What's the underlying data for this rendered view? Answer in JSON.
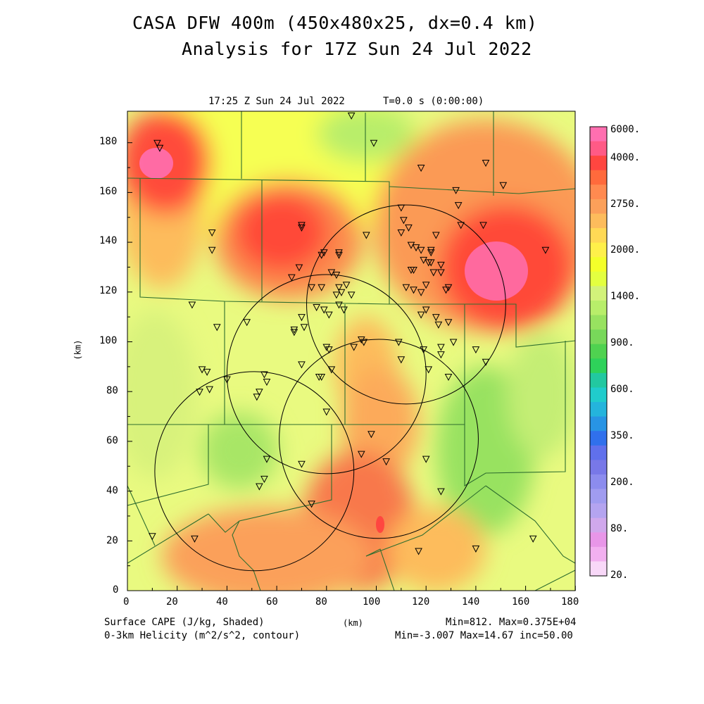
{
  "header": {
    "title_line1": "CASA DFW 400m (450x480x25, dx=0.4 km)",
    "title_line2": "Analysis for 17Z Sun 24 Jul 2022",
    "valid_time": "17:25 Z Sun 24 Jul 2022",
    "model_time": "T=0.0 s (0:00:00)"
  },
  "axes": {
    "x_label": "(km)",
    "y_label": "(km)",
    "x_ticks": [
      "0",
      "20",
      "40",
      "60",
      "80",
      "100",
      "120",
      "140",
      "160",
      "180"
    ],
    "y_ticks": [
      "0",
      "20",
      "40",
      "60",
      "80",
      "100",
      "120",
      "140",
      "160",
      "180"
    ]
  },
  "colorbar": {
    "labels": [
      "6000.",
      "4000.",
      "2750.",
      "2000.",
      "1400.",
      "900.",
      "600.",
      "350.",
      "200.",
      "80.",
      "20."
    ],
    "colors": [
      "#ff6fb0",
      "#ff5a86",
      "#ff4640",
      "#ff6a3c",
      "#ff8a50",
      "#fba05a",
      "#fdbc5c",
      "#ffd955",
      "#fff04a",
      "#f4ff2a",
      "#e3ff40",
      "#d2f27a",
      "#b8ee6a",
      "#98e260",
      "#78d85a",
      "#4fd250",
      "#2ed25a",
      "#22c8a0",
      "#20cccc",
      "#24b4dc",
      "#2894e4",
      "#3070ec",
      "#6070ec",
      "#7878e8",
      "#8c8cee",
      "#a09cf0",
      "#b4a4f0",
      "#d0a8ec",
      "#e896e8",
      "#f2b0f0",
      "#f8d8f8"
    ]
  },
  "footer": {
    "left_line1": "Surface CAPE (J/kg, Shaded)",
    "left_line2": "0-3km Helicity (m^2/s^2, contour)",
    "center": "(km)",
    "right_line1": "Min=812. Max=0.375E+04",
    "right_line2": "Min=-3.007 Max=14.67 inc=50.00"
  },
  "map": {
    "extent_km": {
      "x": [
        0,
        180
      ],
      "y": [
        0,
        192
      ]
    },
    "radar_circles_km": [
      {
        "center": [
          112,
          115
        ],
        "radius": 40
      },
      {
        "center": [
          80,
          87
        ],
        "radius": 40
      },
      {
        "center": [
          101,
          61
        ],
        "radius": 40
      },
      {
        "center": [
          51,
          48
        ],
        "radius": 40
      }
    ],
    "stations_km": [
      [
        12,
        180
      ],
      [
        13,
        178
      ],
      [
        90,
        191
      ],
      [
        99,
        180
      ],
      [
        118,
        170
      ],
      [
        144,
        172
      ],
      [
        151,
        163
      ],
      [
        132,
        161
      ],
      [
        133,
        155
      ],
      [
        134,
        147
      ],
      [
        143,
        147
      ],
      [
        168,
        137
      ],
      [
        34,
        144
      ],
      [
        34,
        137
      ],
      [
        70,
        147
      ],
      [
        70,
        146
      ],
      [
        66,
        126
      ],
      [
        69,
        130
      ],
      [
        78,
        135
      ],
      [
        79,
        136
      ],
      [
        85,
        136
      ],
      [
        85,
        135
      ],
      [
        96,
        143
      ],
      [
        110,
        154
      ],
      [
        111,
        149
      ],
      [
        113,
        146
      ],
      [
        110,
        144
      ],
      [
        114,
        139
      ],
      [
        116,
        138
      ],
      [
        118,
        137
      ],
      [
        114,
        129
      ],
      [
        115,
        129
      ],
      [
        119,
        133
      ],
      [
        121,
        132
      ],
      [
        122,
        136
      ],
      [
        122,
        132
      ],
      [
        123,
        128
      ],
      [
        126,
        131
      ],
      [
        126,
        128
      ],
      [
        124,
        143
      ],
      [
        74,
        122
      ],
      [
        78,
        122
      ],
      [
        82,
        128
      ],
      [
        84,
        127
      ],
      [
        85,
        122
      ],
      [
        86,
        120
      ],
      [
        84,
        119
      ],
      [
        85,
        115
      ],
      [
        88,
        123
      ],
      [
        90,
        119
      ],
      [
        87,
        113
      ],
      [
        76,
        114
      ],
      [
        79,
        113
      ],
      [
        81,
        111
      ],
      [
        112,
        122
      ],
      [
        115,
        121
      ],
      [
        118,
        120
      ],
      [
        120,
        123
      ],
      [
        118,
        111
      ],
      [
        120,
        113
      ],
      [
        124,
        110
      ],
      [
        125,
        107
      ],
      [
        129,
        108
      ],
      [
        128,
        121
      ],
      [
        129,
        122
      ],
      [
        122,
        137
      ],
      [
        26,
        115
      ],
      [
        36,
        106
      ],
      [
        48,
        108
      ],
      [
        67,
        104
      ],
      [
        67,
        105
      ],
      [
        70,
        110
      ],
      [
        71,
        106
      ],
      [
        80,
        98
      ],
      [
        81,
        97
      ],
      [
        91,
        98
      ],
      [
        94,
        101
      ],
      [
        95,
        100
      ],
      [
        109,
        100
      ],
      [
        110,
        93
      ],
      [
        119,
        97
      ],
      [
        121,
        89
      ],
      [
        126,
        98
      ],
      [
        126,
        95
      ],
      [
        129,
        86
      ],
      [
        131,
        100
      ],
      [
        140,
        97
      ],
      [
        144,
        92
      ],
      [
        30,
        89
      ],
      [
        32,
        88
      ],
      [
        29,
        80
      ],
      [
        33,
        81
      ],
      [
        40,
        85
      ],
      [
        55,
        87
      ],
      [
        56,
        84
      ],
      [
        53,
        80
      ],
      [
        52,
        78
      ],
      [
        70,
        91
      ],
      [
        77,
        86
      ],
      [
        78,
        86
      ],
      [
        82,
        89
      ],
      [
        80,
        72
      ],
      [
        98,
        63
      ],
      [
        94,
        55
      ],
      [
        104,
        52
      ],
      [
        120,
        53
      ],
      [
        126,
        40
      ],
      [
        56,
        53
      ],
      [
        55,
        45
      ],
      [
        53,
        42
      ],
      [
        70,
        51
      ],
      [
        74,
        35
      ],
      [
        10,
        22
      ],
      [
        27,
        21
      ],
      [
        117,
        16
      ],
      [
        140,
        17
      ],
      [
        163,
        21
      ]
    ]
  }
}
